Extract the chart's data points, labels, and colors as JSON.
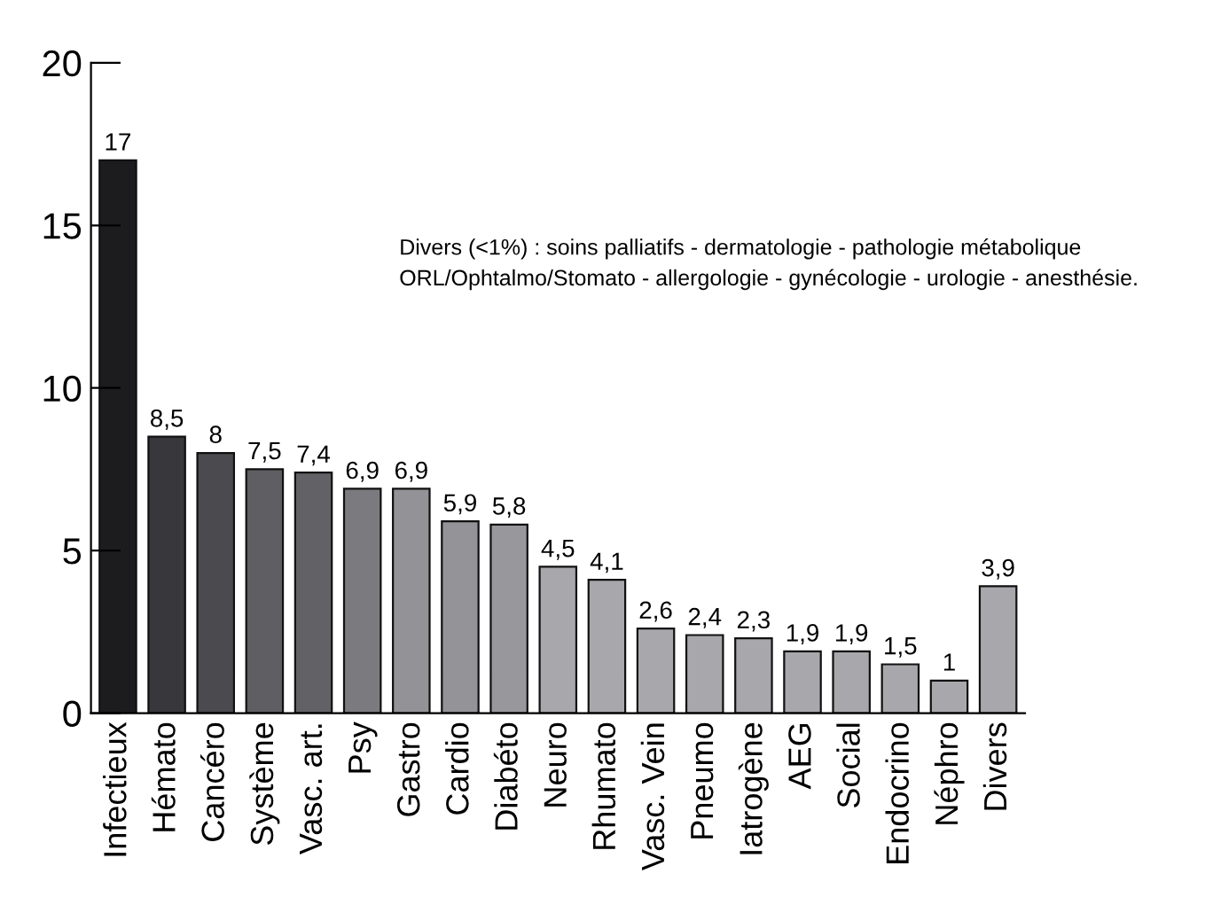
{
  "chart_data": {
    "type": "bar",
    "categories": [
      "Infectieux",
      "Hémato",
      "Cancéro",
      "Système",
      "Vasc. art.",
      "Psy",
      "Gastro",
      "Cardio",
      "Diabéto",
      "Neuro",
      "Rhumato",
      "Vasc. Vein",
      "Pneumo",
      "Iatrogène",
      "AEG",
      "Social",
      "Endocrino",
      "Néphro",
      "Divers"
    ],
    "values": [
      17,
      8.5,
      8,
      7.5,
      7.4,
      6.9,
      6.9,
      5.9,
      5.8,
      4.5,
      4.1,
      2.6,
      2.4,
      2.3,
      1.9,
      1.9,
      1.5,
      1,
      3.9
    ],
    "colors": [
      "#1c1c1f",
      "#38373b",
      "#4b4a4f",
      "#5f5e63",
      "#626166",
      "#7b7a7f",
      "#939297",
      "#949398",
      "#98979c",
      "#a8a8ac",
      "#a8a8ac",
      "#a8a8ac",
      "#a8a8ac",
      "#a8a8ac",
      "#a8a8ac",
      "#a8a8ac",
      "#a8a8ac",
      "#a8a8ac",
      "#a8a8ac"
    ],
    "value_labels": [
      "17",
      "8,5",
      "8",
      "7,5",
      "7,4",
      "6,9",
      "6,9",
      "5,9",
      "5,8",
      "4,5",
      "4,1",
      "2,6",
      "2,4",
      "2,3",
      "1,9",
      "1,9",
      "1,5",
      "1",
      "3,9"
    ],
    "ylim": [
      0,
      20
    ],
    "yticks": [
      0,
      5,
      10,
      15,
      20
    ],
    "grid": false,
    "legend": false,
    "annotations": [
      "Divers (<1%) : soins palliatifs - dermatologie - pathologie métabolique\nORL/Ophtalmo/Stomato - allergologie - gynécologie - urologie - anesthésie."
    ]
  }
}
